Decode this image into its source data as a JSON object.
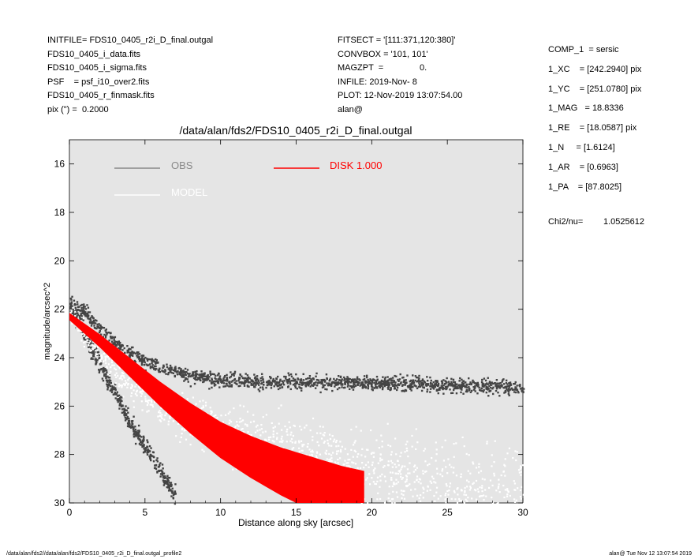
{
  "header_left": [
    "INITFILE= FDS10_0405_r2i_D_final.outgal",
    "FDS10_0405_i_data.fits",
    "FDS10_0405_i_sigma.fits",
    "PSF    = psf_i10_over2.fits",
    "FDS10_0405_r_finmask.fits",
    "pix (\") =  0.2000"
  ],
  "header_mid": [
    "FITSECT = '[111:371,120:380]'",
    "CONVBOX = '101, 101'",
    "MAGZPT  =               0.",
    "INFILE: 2019-Nov- 8",
    "PLOT: 12-Nov-2019 13:07:54.00",
    "alan@"
  ],
  "params": [
    "COMP_1  = sersic",
    "1_XC    = [242.2940] pix",
    "1_YC    = [251.0780] pix",
    "1_MAG   = 18.8336",
    "1_RE    = [18.0587] pix",
    "1_N     = [1.6124]",
    "1_AR    = [0.6963]",
    "1_PA    = [87.8025]"
  ],
  "chi2_label": "Chi2/nu=",
  "chi2_value": "1.0525612",
  "footer_left": "/data/alan/fds2//data/alan/fds2/FDS10_0405_r2i_D_final.outgal_profile2",
  "footer_right": "alan@  Tue Nov 12 13:07:54 2019",
  "chart_data": {
    "type": "scatter",
    "title": "/data/alan/fds2/FDS10_0405_r2i_D_final.outgal",
    "xlabel": "Distance along sky [arcsec]",
    "ylabel": "magnitude/arcsec^2",
    "xlim": [
      0,
      30
    ],
    "ylim": [
      30,
      15
    ],
    "y_inverted": true,
    "xticks": [
      0,
      5,
      10,
      15,
      20,
      25,
      30
    ],
    "yticks": [
      16,
      18,
      20,
      22,
      24,
      26,
      28,
      30
    ],
    "background": "#e5e5e5",
    "grid": false,
    "legend": [
      {
        "label": "OBS",
        "color": "#888888"
      },
      {
        "label": "MODEL",
        "color": "#ffffff"
      },
      {
        "label": "DISK  1.000",
        "color": "#ff0000"
      }
    ],
    "series": [
      {
        "name": "OBS",
        "color": "#444444",
        "x": [
          0.0,
          0.5,
          1.0,
          2.0,
          3.0,
          4.0,
          5.0,
          6.0,
          8.0,
          10.0,
          15.0,
          20.0,
          25.0,
          30.0
        ],
        "y": [
          21.7,
          21.9,
          22.1,
          22.8,
          23.4,
          23.8,
          24.1,
          24.4,
          24.7,
          24.9,
          25.0,
          25.0,
          25.1,
          25.2
        ]
      },
      {
        "name": "OBS",
        "color": "#444444",
        "x": [
          0.0,
          0.5,
          1.0,
          1.5,
          2.0,
          2.5,
          3.0,
          3.5,
          4.0,
          4.5,
          5.0,
          5.5,
          6.0,
          6.5,
          7.0
        ],
        "y": [
          21.9,
          22.4,
          23.0,
          23.7,
          24.3,
          24.9,
          25.5,
          26.1,
          26.7,
          27.2,
          27.7,
          28.2,
          28.7,
          29.2,
          29.7
        ]
      },
      {
        "name": "MODEL",
        "color": "#ffffff",
        "x": [
          0.0,
          2.0,
          4.0,
          6.0,
          8.0,
          10.0,
          12.0,
          15.0,
          20.0,
          25.0,
          30.0
        ],
        "y": [
          22.2,
          23.8,
          25.1,
          25.9,
          26.5,
          27.0,
          27.4,
          27.9,
          28.6,
          29.3,
          29.9
        ]
      },
      {
        "name": "DISK  1.000",
        "color": "#ff0000",
        "x": [
          0.0,
          2.0,
          4.0,
          6.0,
          8.0,
          10.0,
          12.0,
          14.0,
          16.0,
          18.0,
          19.5
        ],
        "y": [
          22.3,
          23.3,
          24.4,
          25.5,
          26.5,
          27.4,
          28.1,
          28.7,
          29.2,
          29.7,
          30.0
        ]
      }
    ]
  }
}
